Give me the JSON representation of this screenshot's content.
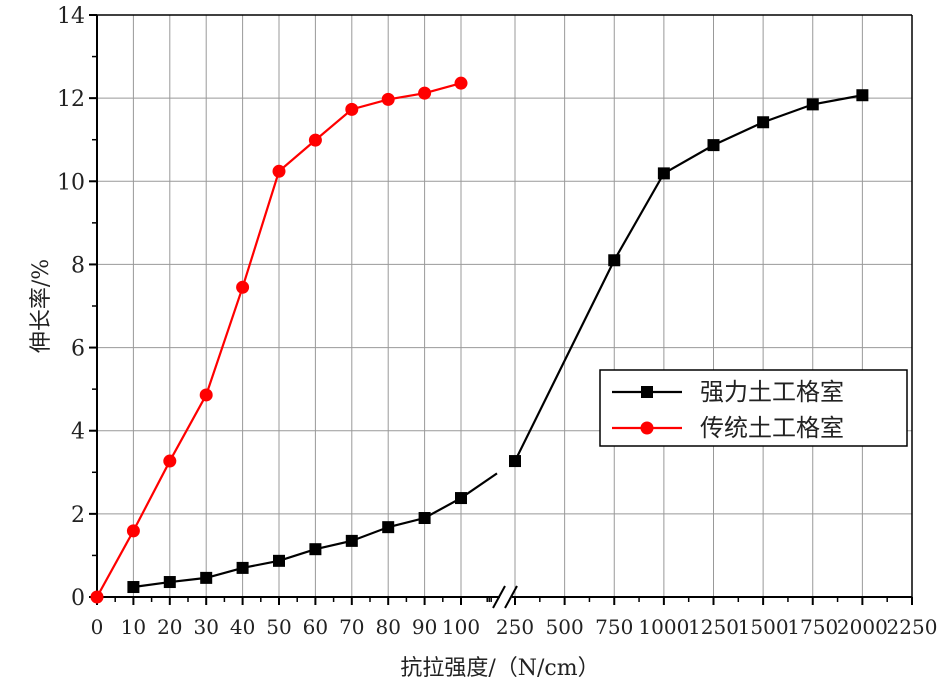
{
  "chart_data": {
    "type": "line",
    "title": "",
    "xlabel": "抗拉强度/（N/cm）",
    "ylabel": "伸长率/%",
    "ylim": [
      0,
      14
    ],
    "yticks": [
      "0",
      "2",
      "4",
      "6",
      "8",
      "10",
      "12",
      "14"
    ],
    "x_axis_broken": true,
    "x_segments": [
      {
        "range": [
          0,
          100
        ],
        "ticks": [
          "0",
          "10",
          "20",
          "30",
          "40",
          "50",
          "60",
          "70",
          "80",
          "90",
          "100"
        ]
      },
      {
        "range": [
          250,
          2250
        ],
        "ticks": [
          "250",
          "500",
          "750",
          "1000",
          "1250",
          "1500",
          "1750",
          "2000",
          "2250"
        ]
      }
    ],
    "grid": true,
    "legend_position": "center-right",
    "series": [
      {
        "name": "强力土工格室",
        "color": "#000000",
        "marker": "square",
        "x": [
          10,
          20,
          30,
          40,
          50,
          60,
          70,
          80,
          90,
          100,
          250,
          750,
          1000,
          1250,
          1500,
          1750,
          2000
        ],
        "y": [
          0.24,
          0.36,
          0.46,
          0.7,
          0.87,
          1.15,
          1.35,
          1.68,
          1.9,
          2.38,
          3.27,
          8.1,
          10.19,
          10.87,
          11.42,
          11.85,
          12.07
        ]
      },
      {
        "name": "传统土工格室",
        "color": "#ff0000",
        "marker": "circle",
        "x": [
          0,
          10,
          20,
          30,
          40,
          50,
          60,
          70,
          80,
          90,
          100
        ],
        "y": [
          0,
          1.59,
          3.27,
          4.86,
          7.45,
          10.24,
          10.99,
          11.73,
          11.97,
          12.12,
          12.36
        ]
      }
    ]
  }
}
